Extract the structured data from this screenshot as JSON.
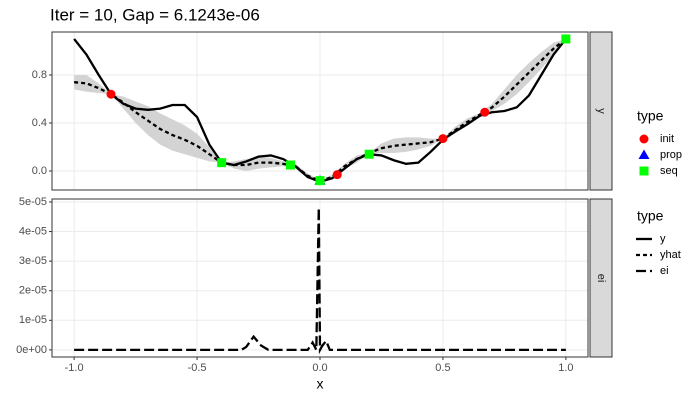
{
  "chart_data": [
    {
      "type": "line",
      "title": "Iter = 10, Gap = 6.1243e-06",
      "facet": "y",
      "legend_title": "type",
      "xlim": [
        -1.09,
        1.09
      ],
      "xticks": [
        {
          "value": -1,
          "label": "-1.0"
        },
        {
          "value": -0.5,
          "label": "-0.5"
        },
        {
          "value": 0,
          "label": "0.0"
        },
        {
          "value": 0.5,
          "label": "0.5"
        },
        {
          "value": 1,
          "label": "1.0"
        }
      ],
      "ylim": [
        -0.158,
        1.158
      ],
      "yticks": [
        {
          "value": 0,
          "label": "0.0"
        },
        0.4,
        0.8
      ],
      "grid": true,
      "x": [
        -1,
        -0.95,
        -0.9,
        -0.85,
        -0.8,
        -0.75,
        -0.7,
        -0.65,
        -0.6,
        -0.55,
        -0.5,
        -0.45,
        -0.4,
        -0.35,
        -0.3,
        -0.25,
        -0.2,
        -0.15,
        -0.1,
        -0.05,
        0,
        0.05,
        0.1,
        0.15,
        0.2,
        0.25,
        0.3,
        0.35,
        0.4,
        0.45,
        0.5,
        0.55,
        0.6,
        0.65,
        0.7,
        0.75,
        0.8,
        0.85,
        0.9,
        0.95,
        1
      ],
      "series": [
        {
          "name": "y",
          "kind": "line",
          "linetype": "solid",
          "color": "#000000",
          "values": [
            1.1,
            0.97,
            0.8,
            0.64,
            0.56,
            0.52,
            0.51,
            0.52,
            0.55,
            0.55,
            0.45,
            0.22,
            0.07,
            0.05,
            0.08,
            0.12,
            0.13,
            0.1,
            0.04,
            -0.05,
            -0.09,
            -0.06,
            0.02,
            0.1,
            0.14,
            0.13,
            0.09,
            0.06,
            0.07,
            0.16,
            0.26,
            0.33,
            0.39,
            0.46,
            0.49,
            0.5,
            0.53,
            0.63,
            0.8,
            0.97,
            1.1
          ]
        },
        {
          "name": "yhat",
          "kind": "line",
          "linetype": "dashed",
          "color": "#000000",
          "band_color": "#d3d3d3",
          "values": [
            0.74,
            0.73,
            0.69,
            0.64,
            0.57,
            0.49,
            0.42,
            0.35,
            0.3,
            0.26,
            0.21,
            0.14,
            0.07,
            0.05,
            0.05,
            0.07,
            0.07,
            0.06,
            0.04,
            -0.04,
            -0.08,
            -0.05,
            0.04,
            0.1,
            0.15,
            0.19,
            0.21,
            0.22,
            0.23,
            0.24,
            0.27,
            0.34,
            0.41,
            0.47,
            0.53,
            0.62,
            0.72,
            0.82,
            0.92,
            1.02,
            1.1
          ],
          "upper": [
            0.8,
            0.8,
            0.73,
            0.64,
            0.62,
            0.58,
            0.54,
            0.48,
            0.43,
            0.38,
            0.31,
            0.2,
            0.07,
            0.08,
            0.1,
            0.12,
            0.11,
            0.08,
            0.06,
            -0.02,
            -0.08,
            -0.03,
            0.06,
            0.13,
            0.15,
            0.23,
            0.27,
            0.28,
            0.28,
            0.27,
            0.27,
            0.37,
            0.44,
            0.48,
            0.56,
            0.68,
            0.8,
            0.9,
            0.99,
            1.07,
            1.1
          ],
          "lower": [
            0.68,
            0.66,
            0.65,
            0.64,
            0.52,
            0.4,
            0.3,
            0.22,
            0.17,
            0.14,
            0.11,
            0.08,
            0.07,
            0.02,
            0.0,
            0.02,
            0.03,
            0.04,
            0.02,
            -0.06,
            -0.08,
            -0.07,
            0.02,
            0.07,
            0.15,
            0.15,
            0.15,
            0.16,
            0.18,
            0.21,
            0.27,
            0.31,
            0.38,
            0.46,
            0.5,
            0.56,
            0.64,
            0.74,
            0.85,
            0.97,
            1.1
          ]
        },
        {
          "name": "init",
          "kind": "scatter",
          "shape": "circle",
          "color": "#ff0000",
          "x": [
            -0.85,
            0.07,
            0.5,
            0.67
          ],
          "values": [
            0.64,
            -0.03,
            0.27,
            0.49
          ]
        },
        {
          "name": "prop",
          "kind": "scatter",
          "shape": "triangle",
          "color": "#0000ff",
          "x": [
            0.0
          ],
          "values": [
            -0.08
          ]
        },
        {
          "name": "seq",
          "kind": "scatter",
          "shape": "square",
          "color": "#00ff00",
          "x": [
            -0.4,
            -0.12,
            0.0,
            0.2,
            1.0
          ],
          "values": [
            0.07,
            0.05,
            -0.08,
            0.14,
            1.1
          ]
        }
      ]
    },
    {
      "type": "line",
      "facet": "ei",
      "legend_title": "type",
      "xlabel": "x",
      "xlim": [
        -1.09,
        1.09
      ],
      "xticks": [
        {
          "value": -1,
          "label": "-1.0"
        },
        {
          "value": -0.5,
          "label": "-0.5"
        },
        {
          "value": 0,
          "label": "0.0"
        },
        {
          "value": 0.5,
          "label": "0.5"
        },
        {
          "value": 1,
          "label": "1.0"
        }
      ],
      "ylim": [
        -2.4e-06,
        5.1e-05
      ],
      "yticks": [
        {
          "value": 0,
          "label": "0e+00"
        },
        {
          "value": 1e-05,
          "label": "1e-05"
        },
        {
          "value": 2e-05,
          "label": "2e-05"
        },
        {
          "value": 3e-05,
          "label": "3e-05"
        },
        {
          "value": 4e-05,
          "label": "4e-05"
        },
        {
          "value": 5e-05,
          "label": "5e-05"
        }
      ],
      "grid": true,
      "x": [
        -1,
        -0.35,
        -0.32,
        -0.3,
        -0.27,
        -0.24,
        -0.21,
        -0.05,
        -0.03,
        -0.015,
        -0.005,
        0.0,
        0.01,
        0.025,
        0.04,
        1
      ],
      "series": [
        {
          "name": "ei",
          "kind": "line",
          "linetype": "longdash",
          "color": "#000000",
          "values": [
            0,
            0,
            0,
            1e-06,
            4.5e-06,
            1.5e-06,
            0,
            0,
            2.5e-06,
            0,
            4.8e-05,
            0,
            1.5e-06,
            3e-06,
            0,
            0
          ]
        }
      ]
    }
  ]
}
